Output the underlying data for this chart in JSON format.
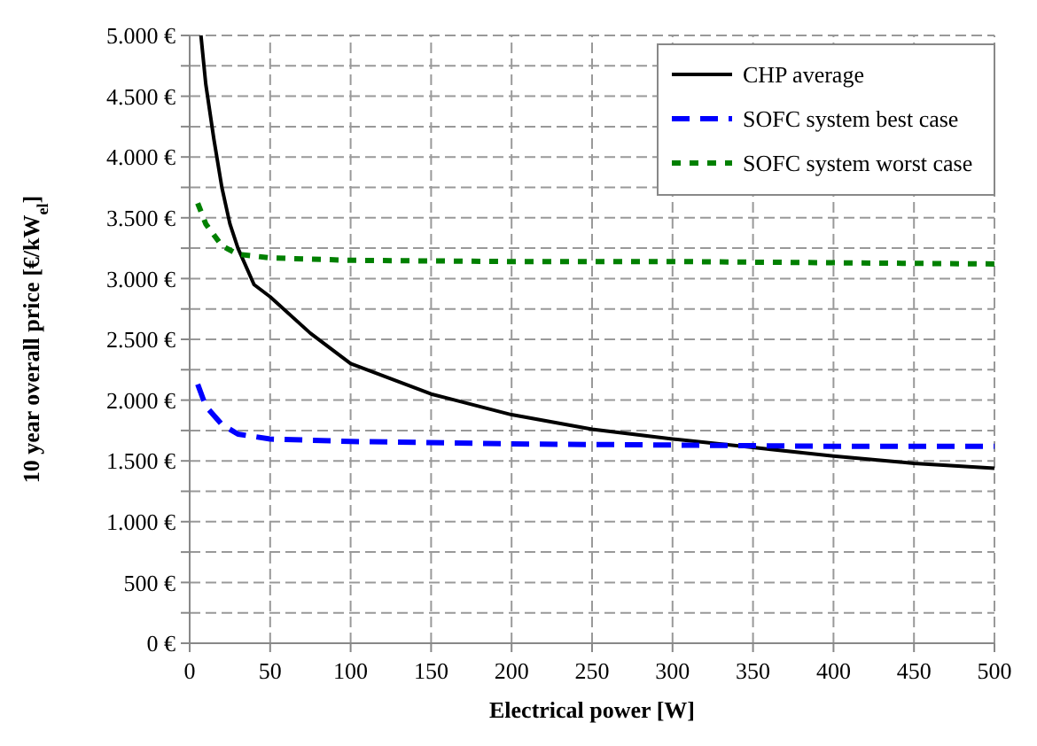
{
  "chart_data": {
    "type": "line",
    "xlabel": "Electrical power [W]",
    "ylabel": "10 year overall price [€/kW$_{el}$]",
    "xlim": [
      0,
      500
    ],
    "xticks": [
      0,
      50,
      100,
      150,
      200,
      250,
      300,
      350,
      400,
      450,
      500
    ],
    "ylim": [
      0,
      5000
    ],
    "yticks": [
      {
        "value": 0,
        "label": "0 €"
      },
      {
        "value": 250,
        "label": null
      },
      {
        "value": 500,
        "label": "500 €"
      },
      {
        "value": 750,
        "label": null
      },
      {
        "value": 1000,
        "label": "1.000 €"
      },
      {
        "value": 1250,
        "label": null
      },
      {
        "value": 1500,
        "label": "1.500 €"
      },
      {
        "value": 1750,
        "label": null
      },
      {
        "value": 2000,
        "label": "2.000 €"
      },
      {
        "value": 2250,
        "label": null
      },
      {
        "value": 2500,
        "label": "2.500 €"
      },
      {
        "value": 2750,
        "label": null
      },
      {
        "value": 3000,
        "label": "3.000 €"
      },
      {
        "value": 3250,
        "label": null
      },
      {
        "value": 3500,
        "label": "3.500 €"
      },
      {
        "value": 3750,
        "label": null
      },
      {
        "value": 4000,
        "label": "4.000 €"
      },
      {
        "value": 4250,
        "label": null
      },
      {
        "value": 4500,
        "label": "4.500 €"
      },
      {
        "value": 4750,
        "label": null
      },
      {
        "value": 5000,
        "label": "5.000 €"
      }
    ],
    "grid": true,
    "legend": "top right",
    "series": [
      {
        "name": "CHP average",
        "color": "#000000",
        "line_style": "solid",
        "x": [
          7,
          10,
          15,
          20,
          25,
          30,
          40,
          50,
          75,
          100,
          150,
          200,
          250,
          300,
          350,
          400,
          450,
          500
        ],
        "values": [
          5000,
          4600,
          4150,
          3750,
          3450,
          3250,
          2950,
          2850,
          2550,
          2300,
          2050,
          1880,
          1760,
          1680,
          1610,
          1540,
          1480,
          1440
        ]
      },
      {
        "name": "SOFC system best case",
        "color": "#0000ff",
        "line_style": "dashed",
        "x": [
          5,
          10,
          20,
          30,
          50,
          100,
          200,
          300,
          400,
          500
        ],
        "values": [
          2130,
          1950,
          1800,
          1720,
          1680,
          1660,
          1640,
          1630,
          1620,
          1620
        ]
      },
      {
        "name": "SOFC system worst case",
        "color": "#008000",
        "line_style": "dotted",
        "x": [
          5,
          10,
          20,
          30,
          50,
          100,
          200,
          300,
          400,
          500
        ],
        "values": [
          3620,
          3450,
          3270,
          3200,
          3170,
          3150,
          3140,
          3140,
          3130,
          3120
        ]
      }
    ]
  }
}
